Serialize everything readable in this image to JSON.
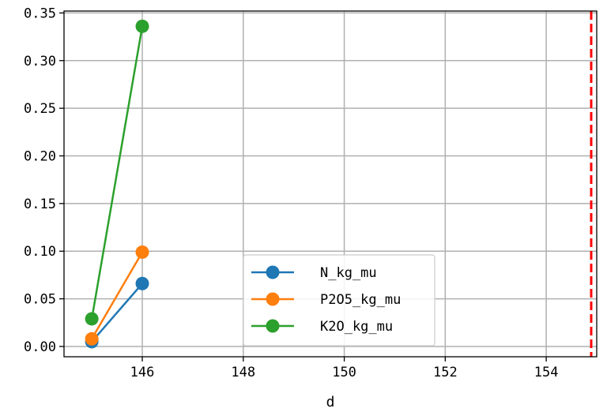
{
  "chart_data": {
    "type": "line",
    "xlabel": "d",
    "ylabel": "",
    "xlim": [
      144.45,
      155.0
    ],
    "ylim": [
      -0.0108,
      0.352
    ],
    "x_ticks": [
      146,
      148,
      150,
      152,
      154
    ],
    "y_ticks": [
      0.0,
      0.05,
      0.1,
      0.15,
      0.2,
      0.25,
      0.3,
      0.35
    ],
    "x_tick_labels": [
      "146",
      "148",
      "150",
      "152",
      "154"
    ],
    "y_tick_labels": [
      "0.00",
      "0.05",
      "0.10",
      "0.15",
      "0.20",
      "0.25",
      "0.30",
      "0.35"
    ],
    "grid": true,
    "legend_position": "lower-center",
    "series": [
      {
        "name": "N_kg_mu",
        "color": "#1f77b4",
        "x": [
          145,
          146
        ],
        "y": [
          0.005,
          0.066
        ]
      },
      {
        "name": "P2O5_kg_mu",
        "color": "#ff7f0e",
        "x": [
          145,
          146
        ],
        "y": [
          0.008,
          0.099
        ]
      },
      {
        "name": "K2O_kg_mu",
        "color": "#2ca02c",
        "x": [
          145,
          146
        ],
        "y": [
          0.029,
          0.336
        ]
      }
    ],
    "vertical_line": {
      "x": 155,
      "color": "#ff0000",
      "style": "dashed"
    }
  }
}
